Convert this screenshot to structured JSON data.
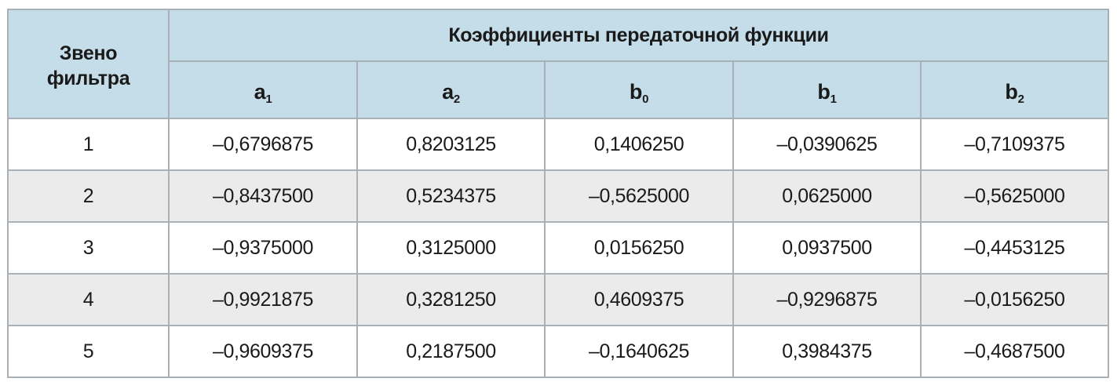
{
  "table": {
    "header": {
      "first_col_line1": "Звено",
      "first_col_line2": "фильтра",
      "group_title": "Коэффициенты передаточной функции",
      "coefficients": [
        {
          "base": "a",
          "sub": "1"
        },
        {
          "base": "a",
          "sub": "2"
        },
        {
          "base": "b",
          "sub": "0"
        },
        {
          "base": "b",
          "sub": "1"
        },
        {
          "base": "b",
          "sub": "2"
        }
      ]
    },
    "rows": [
      {
        "link": "1",
        "values": [
          "–0,6796875",
          "0,8203125",
          "0,1406250",
          "–0,0390625",
          "–0,7109375"
        ]
      },
      {
        "link": "2",
        "values": [
          "–0,8437500",
          "0,5234375",
          "–0,5625000",
          "0,0625000",
          "–0,5625000"
        ]
      },
      {
        "link": "3",
        "values": [
          "–0,9375000",
          "0,3125000",
          "0,0156250",
          "0,0937500",
          "–0,4453125"
        ]
      },
      {
        "link": "4",
        "values": [
          "–0,9921875",
          "0,3281250",
          "0,4609375",
          "–0,9296875",
          "–0,0156250"
        ]
      },
      {
        "link": "5",
        "values": [
          "–0,9609375",
          "0,2187500",
          "–0,1640625",
          "0,3984375",
          "–0,4687500"
        ]
      }
    ]
  }
}
